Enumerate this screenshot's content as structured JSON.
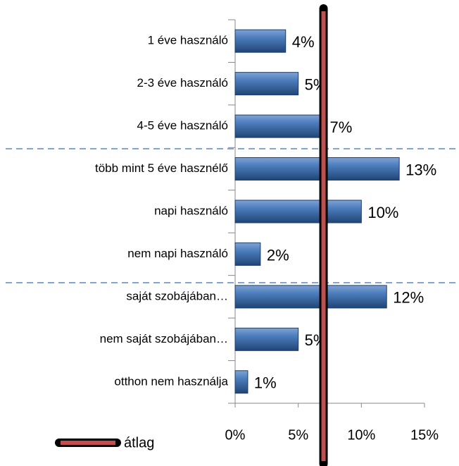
{
  "chart_data": {
    "type": "hbar",
    "categories": [
      "1 éve használó",
      "2-3 éve használó",
      "4-5 éve használó",
      "több mint 5 éve hasznélő",
      "napi használó",
      "nem napi használó",
      "saját szobájában…",
      "nem saját szobájában…",
      "otthon nem használja"
    ],
    "values": [
      4,
      5,
      7,
      13,
      10,
      2,
      12,
      5,
      1
    ],
    "value_labels": [
      "4%",
      "5%",
      "7%",
      "13%",
      "10%",
      "2%",
      "12%",
      "5%",
      "1%"
    ],
    "color": "#3b6aa3",
    "xlim": [
      0,
      15
    ],
    "xticks": [
      {
        "value": 0,
        "label": "0%"
      },
      {
        "value": 5,
        "label": "5%"
      },
      {
        "value": 10,
        "label": "10%"
      },
      {
        "value": 15,
        "label": "15%"
      }
    ],
    "average": {
      "name": "átlag",
      "value": 7,
      "color": "#c0504d"
    },
    "legend": "bottom-left"
  }
}
